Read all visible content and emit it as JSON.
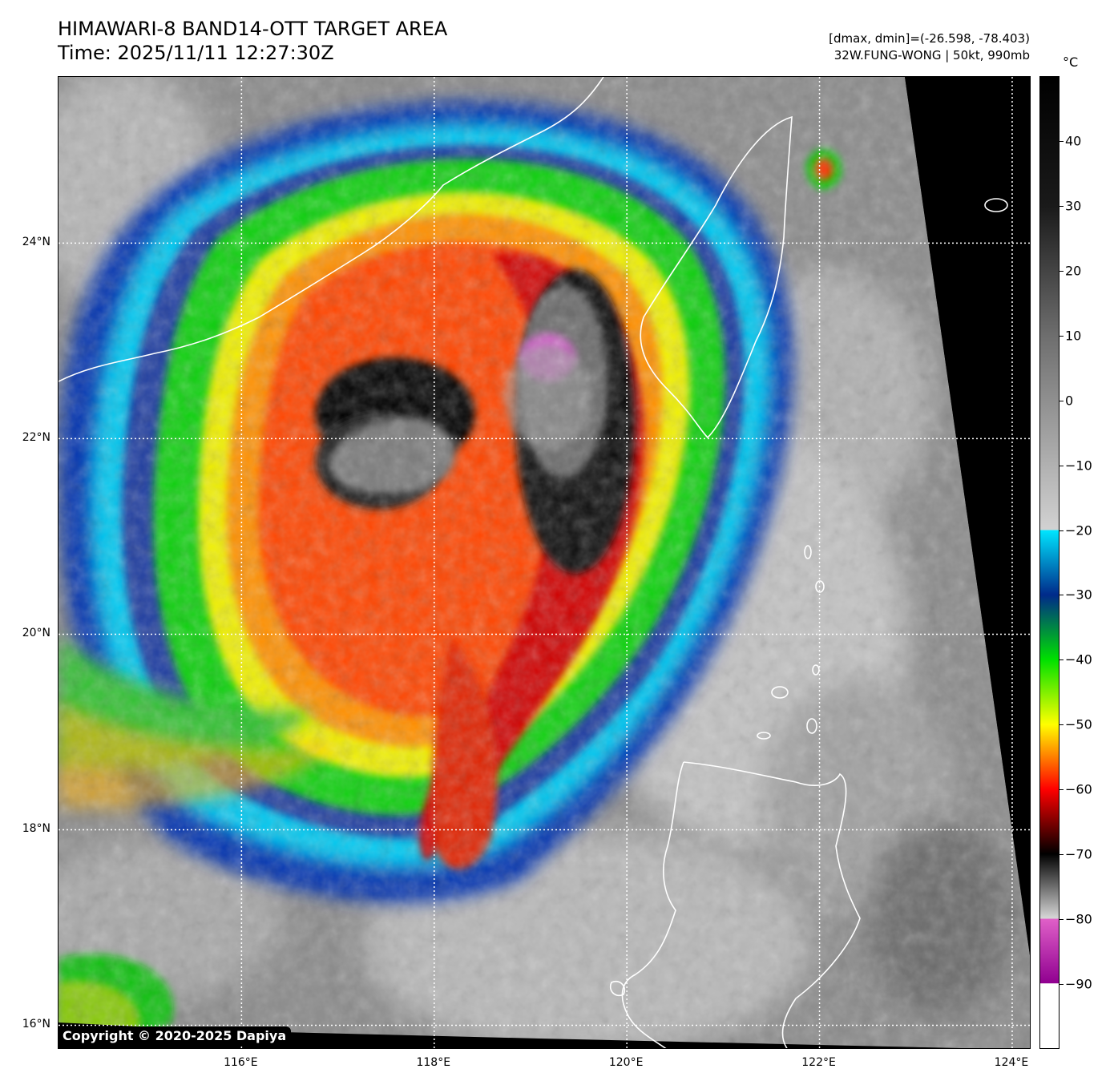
{
  "header": {
    "title_line1": "HIMAWARI-8 BAND14-OTT TARGET AREA",
    "title_line2": "Time: 2025/11/11 12:27:30Z",
    "range_text": "[dmax, dmin]=(-26.598, -78.403)",
    "storm_text": "32W.FUNG-WONG | 50kt, 990mb"
  },
  "map": {
    "lon_range": [
      114.1,
      124.2
    ],
    "lat_range": [
      15.75,
      25.7
    ],
    "lat_ticks": [
      {
        "value": 24,
        "label": "24°N"
      },
      {
        "value": 22,
        "label": "22°N"
      },
      {
        "value": 20,
        "label": "20°N"
      },
      {
        "value": 18,
        "label": "18°N"
      },
      {
        "value": 16,
        "label": "16°N"
      }
    ],
    "lon_ticks": [
      {
        "value": 116,
        "label": "116°E"
      },
      {
        "value": 118,
        "label": "118°E"
      },
      {
        "value": 120,
        "label": "120°E"
      },
      {
        "value": 122,
        "label": "122°E"
      },
      {
        "value": 124,
        "label": "124°E"
      }
    ],
    "gridlines": true,
    "storm_center": {
      "lon": 117.6,
      "lat": 21.8
    },
    "coastline_color": "#ffffff"
  },
  "colorbar": {
    "unit": "°C",
    "range": [
      -100,
      50
    ],
    "ticks": [
      {
        "value": 40,
        "label": "40"
      },
      {
        "value": 30,
        "label": "30"
      },
      {
        "value": 20,
        "label": "20"
      },
      {
        "value": 10,
        "label": "10"
      },
      {
        "value": 0,
        "label": "0"
      },
      {
        "value": -10,
        "label": "−10"
      },
      {
        "value": -20,
        "label": "−20"
      },
      {
        "value": -30,
        "label": "−30"
      },
      {
        "value": -40,
        "label": "−40"
      },
      {
        "value": -50,
        "label": "−50"
      },
      {
        "value": -60,
        "label": "−60"
      },
      {
        "value": -70,
        "label": "−70"
      },
      {
        "value": -80,
        "label": "−80"
      },
      {
        "value": -90,
        "label": "−90"
      }
    ],
    "stops": [
      {
        "value": 50,
        "color": "#000000"
      },
      {
        "value": 30,
        "color": "#1a1a1a"
      },
      {
        "value": 10,
        "color": "#6e6e6e"
      },
      {
        "value": -20,
        "color": "#d2d2d2"
      },
      {
        "value": -20.01,
        "color": "#00e6ff"
      },
      {
        "value": -30,
        "color": "#002a8a"
      },
      {
        "value": -40,
        "color": "#00e000"
      },
      {
        "value": -50,
        "color": "#ffff00"
      },
      {
        "value": -60,
        "color": "#ff0000"
      },
      {
        "value": -70,
        "color": "#000000"
      },
      {
        "value": -80,
        "color": "#d8d8d8"
      },
      {
        "value": -80.01,
        "color": "#e060c8"
      },
      {
        "value": -90,
        "color": "#900090"
      },
      {
        "value": -90.01,
        "color": "#ffffff"
      },
      {
        "value": -100,
        "color": "#ffffff"
      }
    ]
  },
  "footer": {
    "copyright": "Copyright © 2020-2025 Dapiya"
  }
}
